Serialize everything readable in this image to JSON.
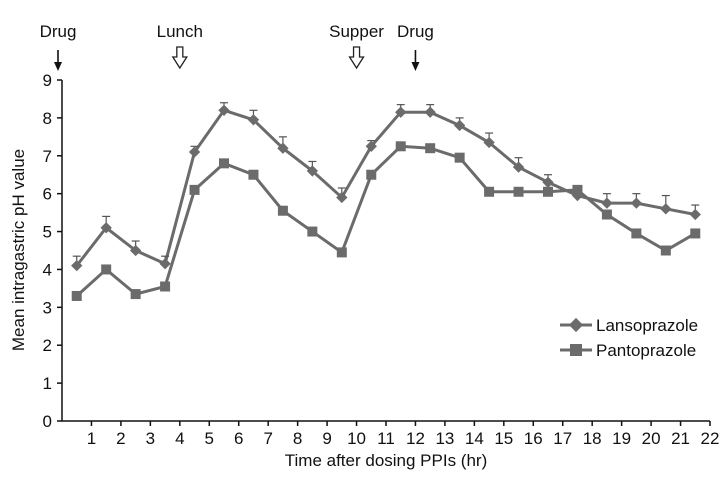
{
  "chart_data": {
    "type": "line",
    "xlabel": "Time after dosing PPIs (hr)",
    "ylabel": "Mean intragastric pH value",
    "xlim": [
      0,
      22
    ],
    "ylim": [
      0,
      9
    ],
    "xticks": [
      1,
      2,
      3,
      4,
      5,
      6,
      7,
      8,
      9,
      10,
      11,
      12,
      13,
      14,
      15,
      16,
      17,
      18,
      19,
      20,
      21,
      22
    ],
    "yticks": [
      0,
      1,
      2,
      3,
      4,
      5,
      6,
      7,
      8,
      9
    ],
    "grid": false,
    "legend_position": "bottom-right",
    "x": [
      0.5,
      1.5,
      2.5,
      3.5,
      4.5,
      5.5,
      6.5,
      7.5,
      8.5,
      9.5,
      10.5,
      11.5,
      12.5,
      13.5,
      14.5,
      15.5,
      16.5,
      17.5,
      18.5,
      19.5,
      20.5,
      21.5
    ],
    "series": [
      {
        "name": "Lansoprazole",
        "marker": "diamond",
        "color": "#6b6b6b",
        "values": [
          4.1,
          5.1,
          4.5,
          4.15,
          7.1,
          8.2,
          7.95,
          7.2,
          6.6,
          5.9,
          7.25,
          8.15,
          8.15,
          7.8,
          7.35,
          6.7,
          6.3,
          5.95,
          5.75,
          5.75,
          5.6,
          5.45
        ],
        "errors": [
          0.25,
          0.3,
          0.25,
          0.2,
          0.15,
          0.2,
          0.25,
          0.3,
          0.25,
          0.25,
          0.15,
          0.2,
          0.2,
          0.2,
          0.25,
          0.25,
          0.2,
          0.2,
          0.25,
          0.25,
          0.35,
          0.25
        ]
      },
      {
        "name": "Pantoprazole",
        "marker": "square",
        "color": "#6b6b6b",
        "values": [
          3.3,
          4.0,
          3.35,
          3.55,
          6.1,
          6.8,
          6.5,
          5.55,
          5.0,
          4.45,
          6.5,
          7.25,
          7.2,
          6.95,
          6.05,
          6.05,
          6.05,
          6.1,
          5.45,
          4.95,
          4.5,
          4.95
        ]
      }
    ],
    "annotations": [
      {
        "label": "Drug",
        "x": 0,
        "arrow": "solid"
      },
      {
        "label": "Lunch",
        "x": 4,
        "arrow": "hollow"
      },
      {
        "label": "Supper",
        "x": 10,
        "arrow": "hollow"
      },
      {
        "label": "Drug",
        "x": 12,
        "arrow": "solid"
      }
    ]
  }
}
